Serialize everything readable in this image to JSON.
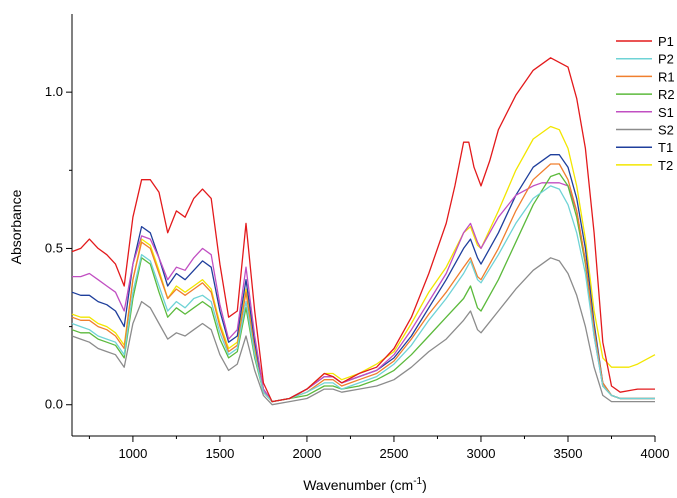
{
  "chart_data": {
    "type": "line",
    "title": "",
    "xlabel": "Wavenumber (cm",
    "xlabel_sup": "-1",
    "xlabel_close": ")",
    "ylabel": "Absorbance",
    "xlim": [
      650,
      4000
    ],
    "ylim": [
      -0.1,
      1.25
    ],
    "x_major_ticks": [
      1000,
      1500,
      2000,
      2500,
      3000,
      3500,
      4000
    ],
    "x_minor_ticks": [
      750,
      1250,
      1750,
      2250,
      2750,
      3250,
      3750
    ],
    "x_tick_labels": [
      "1000",
      "1500",
      "2000",
      "2500",
      "3000",
      "3500",
      "4000"
    ],
    "y_major_ticks": [
      0.0,
      0.5,
      1.0
    ],
    "y_minor_ticks": [
      0.25,
      0.75
    ],
    "y_tick_labels": [
      "0.0",
      "0.5",
      "1.0"
    ],
    "grid": false,
    "legend_position": "top-right",
    "series": [
      {
        "name": "P1",
        "color": "#e31a1c",
        "x": [
          650,
          700,
          750,
          800,
          850,
          900,
          950,
          1000,
          1050,
          1100,
          1150,
          1200,
          1250,
          1300,
          1350,
          1400,
          1450,
          1500,
          1550,
          1600,
          1650,
          1700,
          1750,
          1800,
          1900,
          2000,
          2100,
          2150,
          2200,
          2300,
          2400,
          2500,
          2600,
          2700,
          2800,
          2850,
          2900,
          2930,
          2960,
          3000,
          3050,
          3100,
          3200,
          3300,
          3400,
          3500,
          3550,
          3600,
          3650,
          3700,
          3750,
          3800,
          3900,
          4000
        ],
        "y": [
          0.49,
          0.5,
          0.53,
          0.5,
          0.48,
          0.45,
          0.38,
          0.6,
          0.72,
          0.72,
          0.68,
          0.55,
          0.62,
          0.6,
          0.66,
          0.69,
          0.66,
          0.45,
          0.28,
          0.3,
          0.58,
          0.3,
          0.07,
          0.01,
          0.02,
          0.05,
          0.1,
          0.09,
          0.07,
          0.1,
          0.12,
          0.18,
          0.28,
          0.42,
          0.58,
          0.7,
          0.84,
          0.84,
          0.76,
          0.7,
          0.78,
          0.88,
          0.99,
          1.07,
          1.11,
          1.08,
          0.98,
          0.82,
          0.55,
          0.2,
          0.06,
          0.04,
          0.05,
          0.05
        ]
      },
      {
        "name": "P2",
        "color": "#6fd3d6",
        "x": [
          650,
          700,
          750,
          800,
          850,
          900,
          950,
          1000,
          1050,
          1100,
          1150,
          1200,
          1250,
          1300,
          1350,
          1400,
          1450,
          1500,
          1550,
          1600,
          1650,
          1700,
          1750,
          1800,
          1900,
          2000,
          2100,
          2150,
          2200,
          2300,
          2400,
          2500,
          2600,
          2700,
          2800,
          2900,
          2940,
          2980,
          3000,
          3100,
          3200,
          3300,
          3400,
          3450,
          3500,
          3550,
          3600,
          3650,
          3700,
          3750,
          3800,
          3900,
          4000
        ],
        "y": [
          0.26,
          0.25,
          0.24,
          0.22,
          0.21,
          0.2,
          0.16,
          0.36,
          0.48,
          0.46,
          0.38,
          0.3,
          0.33,
          0.31,
          0.34,
          0.35,
          0.33,
          0.23,
          0.16,
          0.18,
          0.33,
          0.16,
          0.04,
          0.01,
          0.02,
          0.04,
          0.07,
          0.07,
          0.05,
          0.07,
          0.09,
          0.13,
          0.19,
          0.27,
          0.34,
          0.42,
          0.46,
          0.4,
          0.39,
          0.48,
          0.58,
          0.66,
          0.7,
          0.69,
          0.64,
          0.55,
          0.42,
          0.22,
          0.06,
          0.03,
          0.02,
          0.02,
          0.02
        ]
      },
      {
        "name": "R1",
        "color": "#f07f2e",
        "x": [
          650,
          700,
          750,
          800,
          850,
          900,
          950,
          1000,
          1050,
          1100,
          1150,
          1200,
          1250,
          1300,
          1350,
          1400,
          1450,
          1500,
          1550,
          1600,
          1650,
          1700,
          1750,
          1800,
          1900,
          2000,
          2100,
          2150,
          2200,
          2300,
          2400,
          2500,
          2600,
          2700,
          2800,
          2900,
          2940,
          2980,
          3000,
          3100,
          3200,
          3300,
          3400,
          3450,
          3500,
          3550,
          3600,
          3650,
          3700,
          3750,
          3800,
          3900,
          4000
        ],
        "y": [
          0.28,
          0.27,
          0.27,
          0.25,
          0.24,
          0.22,
          0.18,
          0.4,
          0.52,
          0.5,
          0.42,
          0.34,
          0.37,
          0.35,
          0.37,
          0.39,
          0.36,
          0.25,
          0.17,
          0.19,
          0.36,
          0.17,
          0.04,
          0.01,
          0.02,
          0.04,
          0.08,
          0.08,
          0.06,
          0.08,
          0.1,
          0.14,
          0.21,
          0.29,
          0.36,
          0.44,
          0.47,
          0.41,
          0.4,
          0.5,
          0.62,
          0.72,
          0.77,
          0.77,
          0.72,
          0.62,
          0.46,
          0.24,
          0.07,
          0.03,
          0.02,
          0.02,
          0.02
        ]
      },
      {
        "name": "R2",
        "color": "#5cba3c",
        "x": [
          650,
          700,
          750,
          800,
          850,
          900,
          950,
          1000,
          1050,
          1100,
          1150,
          1200,
          1250,
          1300,
          1350,
          1400,
          1450,
          1500,
          1550,
          1600,
          1650,
          1700,
          1750,
          1800,
          1900,
          2000,
          2100,
          2150,
          2200,
          2300,
          2400,
          2500,
          2600,
          2700,
          2800,
          2900,
          2940,
          2980,
          3000,
          3100,
          3200,
          3300,
          3400,
          3450,
          3500,
          3550,
          3600,
          3650,
          3700,
          3750,
          3800,
          3900,
          4000
        ],
        "y": [
          0.24,
          0.23,
          0.23,
          0.21,
          0.2,
          0.19,
          0.15,
          0.34,
          0.47,
          0.45,
          0.36,
          0.28,
          0.31,
          0.29,
          0.31,
          0.33,
          0.31,
          0.21,
          0.15,
          0.17,
          0.31,
          0.15,
          0.04,
          0.01,
          0.02,
          0.03,
          0.06,
          0.06,
          0.05,
          0.06,
          0.08,
          0.11,
          0.16,
          0.22,
          0.28,
          0.34,
          0.38,
          0.31,
          0.3,
          0.4,
          0.52,
          0.64,
          0.73,
          0.74,
          0.7,
          0.6,
          0.45,
          0.23,
          0.06,
          0.03,
          0.02,
          0.02,
          0.02
        ]
      },
      {
        "name": "S1",
        "color": "#c14fc2",
        "x": [
          650,
          700,
          750,
          800,
          850,
          900,
          950,
          1000,
          1050,
          1100,
          1150,
          1200,
          1250,
          1300,
          1350,
          1400,
          1450,
          1500,
          1550,
          1600,
          1650,
          1700,
          1750,
          1800,
          1900,
          2000,
          2100,
          2150,
          2200,
          2300,
          2400,
          2500,
          2600,
          2700,
          2800,
          2900,
          2940,
          2980,
          3000,
          3100,
          3200,
          3300,
          3350,
          3400,
          3450,
          3500,
          3550,
          3600,
          3650,
          3700,
          3750,
          3800,
          3900,
          4000
        ],
        "y": [
          0.41,
          0.41,
          0.42,
          0.4,
          0.38,
          0.36,
          0.3,
          0.45,
          0.54,
          0.53,
          0.47,
          0.4,
          0.44,
          0.43,
          0.47,
          0.5,
          0.48,
          0.32,
          0.21,
          0.24,
          0.44,
          0.22,
          0.05,
          0.01,
          0.02,
          0.05,
          0.09,
          0.09,
          0.07,
          0.09,
          0.11,
          0.16,
          0.24,
          0.33,
          0.42,
          0.55,
          0.58,
          0.52,
          0.5,
          0.6,
          0.67,
          0.7,
          0.71,
          0.71,
          0.71,
          0.7,
          0.62,
          0.46,
          0.22,
          0.06,
          0.03,
          0.02,
          0.02,
          0.02
        ]
      },
      {
        "name": "S2",
        "color": "#8c8c8c",
        "x": [
          650,
          700,
          750,
          800,
          850,
          900,
          950,
          1000,
          1050,
          1100,
          1150,
          1200,
          1250,
          1300,
          1350,
          1400,
          1450,
          1500,
          1550,
          1600,
          1650,
          1700,
          1750,
          1800,
          1900,
          2000,
          2100,
          2150,
          2200,
          2300,
          2400,
          2500,
          2600,
          2700,
          2800,
          2900,
          2940,
          2980,
          3000,
          3100,
          3200,
          3300,
          3400,
          3450,
          3500,
          3550,
          3600,
          3650,
          3700,
          3750,
          3800,
          3900,
          4000
        ],
        "y": [
          0.22,
          0.21,
          0.2,
          0.18,
          0.17,
          0.16,
          0.12,
          0.26,
          0.33,
          0.31,
          0.26,
          0.21,
          0.23,
          0.22,
          0.24,
          0.26,
          0.24,
          0.16,
          0.11,
          0.13,
          0.22,
          0.11,
          0.03,
          0.0,
          0.01,
          0.02,
          0.05,
          0.05,
          0.04,
          0.05,
          0.06,
          0.08,
          0.12,
          0.17,
          0.21,
          0.27,
          0.3,
          0.24,
          0.23,
          0.3,
          0.37,
          0.43,
          0.47,
          0.46,
          0.42,
          0.35,
          0.25,
          0.12,
          0.03,
          0.01,
          0.01,
          0.01,
          0.01
        ]
      },
      {
        "name": "T1",
        "color": "#1f3f9c",
        "x": [
          650,
          700,
          750,
          800,
          850,
          900,
          950,
          1000,
          1050,
          1100,
          1150,
          1200,
          1250,
          1300,
          1350,
          1400,
          1450,
          1500,
          1550,
          1600,
          1650,
          1700,
          1750,
          1800,
          1900,
          2000,
          2100,
          2150,
          2200,
          2300,
          2400,
          2500,
          2600,
          2700,
          2800,
          2900,
          2940,
          2980,
          3000,
          3100,
          3200,
          3300,
          3400,
          3450,
          3500,
          3550,
          3600,
          3650,
          3700,
          3750,
          3800,
          3900,
          4000
        ],
        "y": [
          0.36,
          0.35,
          0.35,
          0.33,
          0.32,
          0.3,
          0.25,
          0.45,
          0.57,
          0.55,
          0.47,
          0.38,
          0.42,
          0.4,
          0.43,
          0.46,
          0.44,
          0.3,
          0.2,
          0.22,
          0.4,
          0.2,
          0.05,
          0.01,
          0.02,
          0.05,
          0.09,
          0.09,
          0.07,
          0.09,
          0.11,
          0.15,
          0.22,
          0.31,
          0.4,
          0.5,
          0.53,
          0.47,
          0.45,
          0.55,
          0.67,
          0.76,
          0.8,
          0.8,
          0.76,
          0.66,
          0.5,
          0.26,
          0.07,
          0.03,
          0.02,
          0.02,
          0.02
        ]
      },
      {
        "name": "T2",
        "color": "#f2e600",
        "x": [
          650,
          700,
          750,
          800,
          850,
          900,
          950,
          1000,
          1050,
          1100,
          1150,
          1200,
          1250,
          1300,
          1350,
          1400,
          1450,
          1500,
          1550,
          1600,
          1650,
          1700,
          1750,
          1800,
          1900,
          2000,
          2100,
          2150,
          2200,
          2300,
          2400,
          2500,
          2600,
          2700,
          2800,
          2900,
          2940,
          2980,
          3000,
          3100,
          3200,
          3300,
          3400,
          3450,
          3500,
          3550,
          3600,
          3650,
          3700,
          3750,
          3800,
          3850,
          3900,
          4000
        ],
        "y": [
          0.29,
          0.28,
          0.28,
          0.26,
          0.25,
          0.23,
          0.19,
          0.4,
          0.53,
          0.51,
          0.43,
          0.34,
          0.38,
          0.36,
          0.38,
          0.4,
          0.37,
          0.26,
          0.18,
          0.2,
          0.37,
          0.18,
          0.04,
          0.01,
          0.02,
          0.05,
          0.1,
          0.1,
          0.08,
          0.1,
          0.13,
          0.17,
          0.26,
          0.36,
          0.44,
          0.55,
          0.57,
          0.51,
          0.5,
          0.62,
          0.75,
          0.85,
          0.89,
          0.88,
          0.82,
          0.7,
          0.53,
          0.3,
          0.15,
          0.12,
          0.12,
          0.12,
          0.13,
          0.16
        ]
      }
    ]
  }
}
